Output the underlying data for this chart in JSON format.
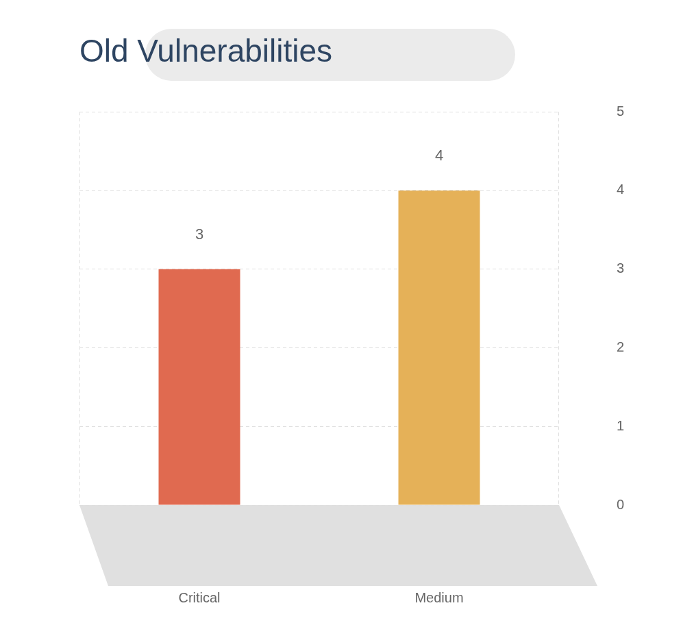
{
  "chart_data": {
    "type": "bar",
    "title": "Old Vulnerabilities",
    "categories": [
      "Critical",
      "Medium"
    ],
    "values": [
      3,
      4
    ],
    "colors": [
      "#e06a50",
      "#e5b158"
    ],
    "ylim": [
      0,
      5
    ],
    "yticks": [
      0,
      1,
      2,
      3,
      4,
      5
    ],
    "grid": "y",
    "data_labels": true,
    "legend": false
  }
}
